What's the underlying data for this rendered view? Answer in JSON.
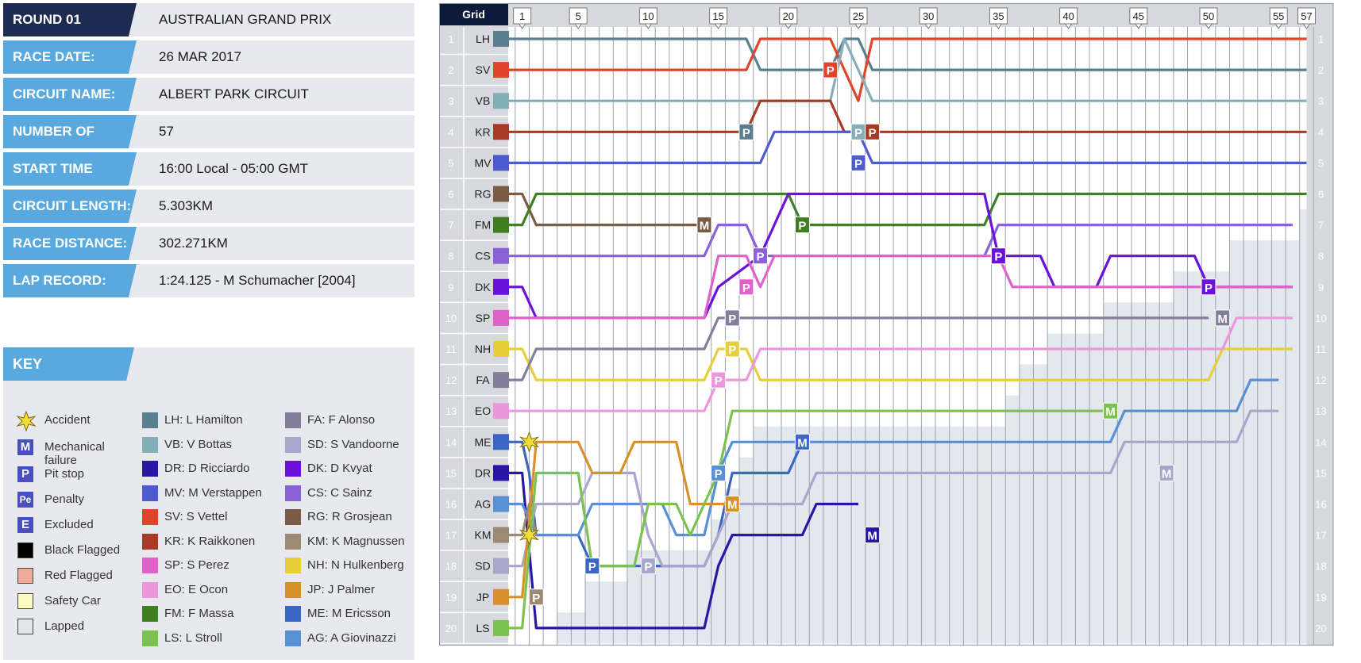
{
  "info": {
    "round": "ROUND 01",
    "event": "AUSTRALIAN GRAND PRIX",
    "rows": [
      {
        "label": "RACE DATE:",
        "value": "26 MAR 2017"
      },
      {
        "label": "CIRCUIT NAME:",
        "value": "ALBERT PARK CIRCUIT"
      },
      {
        "label": "NUMBER OF LAPS:",
        "value": "57"
      },
      {
        "label": "START TIME",
        "value": "16:00 Local - 05:00 GMT"
      },
      {
        "label": "CIRCUIT LENGTH:",
        "value": "5.303KM"
      },
      {
        "label": "RACE DISTANCE:",
        "value": "302.271KM"
      },
      {
        "label": "LAP RECORD:",
        "value": "1:24.125 - M Schumacher [2004]"
      }
    ]
  },
  "key": {
    "title": "KEY",
    "symbols": [
      {
        "icon": "accident-icon",
        "label": "Accident"
      },
      {
        "icon": "mechanical-failure-icon",
        "letter": "M",
        "label": "Mechanical failure"
      },
      {
        "icon": "pit-stop-icon",
        "letter": "P",
        "label": "Pit stop"
      },
      {
        "icon": "penalty-icon",
        "letter": "Pe",
        "label": "Penalty"
      },
      {
        "icon": "excluded-icon",
        "letter": "E",
        "label": "Excluded"
      },
      {
        "icon": "black-flag-icon",
        "label": "Black Flagged",
        "color": "#000000"
      },
      {
        "icon": "red-flag-icon",
        "label": "Red Flagged",
        "color": "#f1a99a"
      },
      {
        "icon": "safety-car-icon",
        "label": "Safety Car",
        "color": "#fbfbc0"
      },
      {
        "icon": "lapped-icon",
        "label": "Lapped",
        "color": "#e3e7ec"
      }
    ],
    "drivers": [
      {
        "code": "LH",
        "label": "LH: L Hamilton"
      },
      {
        "code": "VB",
        "label": "VB: V Bottas"
      },
      {
        "code": "DR",
        "label": "DR: D Ricciardo"
      },
      {
        "code": "MV",
        "label": "MV: M Verstappen"
      },
      {
        "code": "SV",
        "label": "SV: S Vettel"
      },
      {
        "code": "KR",
        "label": "KR: K Raikkonen"
      },
      {
        "code": "SP",
        "label": "SP: S Perez"
      },
      {
        "code": "EO",
        "label": "EO: E Ocon"
      },
      {
        "code": "FM",
        "label": "FM: F Massa"
      },
      {
        "code": "LS",
        "label": "LS: L Stroll"
      },
      {
        "code": "FA",
        "label": "FA: F Alonso"
      },
      {
        "code": "SD",
        "label": "SD: S Vandoorne"
      },
      {
        "code": "DK",
        "label": "DK: D Kvyat"
      },
      {
        "code": "CS",
        "label": "CS: C Sainz"
      },
      {
        "code": "RG",
        "label": "RG: R Grosjean"
      },
      {
        "code": "KM",
        "label": "KM: K Magnussen"
      },
      {
        "code": "NH",
        "label": "NH: N Hulkenberg"
      },
      {
        "code": "JP",
        "label": "JP: J Palmer"
      },
      {
        "code": "ME",
        "label": "ME: M Ericsson"
      },
      {
        "code": "AG",
        "label": "AG: A Giovinazzi"
      }
    ]
  },
  "chart_data": {
    "type": "line",
    "xlabel": "",
    "ylabel": "",
    "grid_header": "Grid",
    "x_ticks": [
      1,
      5,
      10,
      15,
      20,
      25,
      30,
      35,
      40,
      45,
      50,
      55,
      57
    ],
    "x_range": [
      0,
      57
    ],
    "y_range": [
      1,
      20
    ],
    "grid": true,
    "colors": {
      "LH": "#5a7f8e",
      "SV": "#e0452b",
      "VB": "#85afb8",
      "KR": "#a93a26",
      "MV": "#4e5bcf",
      "RG": "#7a5c45",
      "FM": "#3f7e23",
      "CS": "#8a62d8",
      "DK": "#6a12dc",
      "SP": "#e061c9",
      "NH": "#e6cf3a",
      "FA": "#837f9b",
      "EO": "#ec97dc",
      "ME": "#3b66c4",
      "DR": "#2a16a6",
      "AG": "#5790d4",
      "KM": "#9d8a72",
      "SD": "#aaa6cb",
      "JP": "#d8902a",
      "LS": "#7bc24f"
    },
    "series": [
      {
        "name": "LH",
        "grid": 1,
        "positions": [
          [
            1,
            1
          ],
          [
            17,
            1
          ],
          [
            18,
            2
          ],
          [
            23,
            2
          ],
          [
            24,
            1
          ],
          [
            25,
            1
          ],
          [
            26,
            2
          ],
          [
            57,
            2
          ]
        ]
      },
      {
        "name": "SV",
        "grid": 2,
        "positions": [
          [
            1,
            2
          ],
          [
            17,
            2
          ],
          [
            18,
            1
          ],
          [
            23,
            1
          ],
          [
            24,
            2
          ],
          [
            25,
            3
          ],
          [
            26,
            1
          ],
          [
            57,
            1
          ]
        ]
      },
      {
        "name": "VB",
        "grid": 3,
        "positions": [
          [
            1,
            3
          ],
          [
            17,
            3
          ],
          [
            18,
            3
          ],
          [
            23,
            3
          ],
          [
            24,
            1
          ],
          [
            25,
            2
          ],
          [
            26,
            3
          ],
          [
            57,
            3
          ]
        ]
      },
      {
        "name": "KR",
        "grid": 4,
        "positions": [
          [
            1,
            4
          ],
          [
            17,
            4
          ],
          [
            18,
            3
          ],
          [
            23,
            3
          ],
          [
            24,
            4
          ],
          [
            25,
            4
          ],
          [
            26,
            4
          ],
          [
            57,
            4
          ]
        ]
      },
      {
        "name": "MV",
        "grid": 5,
        "positions": [
          [
            1,
            5
          ],
          [
            18,
            5
          ],
          [
            19,
            4
          ],
          [
            25,
            4
          ],
          [
            26,
            5
          ],
          [
            57,
            5
          ]
        ]
      },
      {
        "name": "RG",
        "grid": 6,
        "positions": [
          [
            1,
            6
          ],
          [
            2,
            7
          ],
          [
            14,
            7
          ]
        ]
      },
      {
        "name": "FM",
        "grid": 7,
        "positions": [
          [
            1,
            7
          ],
          [
            2,
            6
          ],
          [
            20,
            6
          ],
          [
            21,
            7
          ],
          [
            34,
            7
          ],
          [
            35,
            6
          ],
          [
            57,
            6
          ]
        ]
      },
      {
        "name": "CS",
        "grid": 8,
        "positions": [
          [
            1,
            8
          ],
          [
            14,
            8
          ],
          [
            15,
            7
          ],
          [
            17,
            7
          ],
          [
            18,
            8
          ],
          [
            34,
            8
          ],
          [
            35,
            7
          ],
          [
            56,
            7
          ]
        ]
      },
      {
        "name": "DK",
        "grid": 9,
        "positions": [
          [
            1,
            9
          ],
          [
            2,
            10
          ],
          [
            14,
            10
          ],
          [
            15,
            9
          ],
          [
            18,
            8
          ],
          [
            19,
            7
          ],
          [
            20,
            6
          ],
          [
            34,
            6
          ],
          [
            35,
            8
          ],
          [
            38,
            8
          ],
          [
            39,
            9
          ],
          [
            42,
            9
          ],
          [
            43,
            8
          ],
          [
            49,
            8
          ],
          [
            50,
            9
          ],
          [
            56,
            9
          ]
        ]
      },
      {
        "name": "SP",
        "grid": 10,
        "positions": [
          [
            1,
            10
          ],
          [
            14,
            10
          ],
          [
            15,
            8
          ],
          [
            17,
            8
          ],
          [
            18,
            9
          ],
          [
            19,
            8
          ],
          [
            35,
            8
          ],
          [
            36,
            9
          ],
          [
            56,
            9
          ]
        ]
      },
      {
        "name": "NH",
        "grid": 11,
        "positions": [
          [
            1,
            11
          ],
          [
            2,
            12
          ],
          [
            14,
            12
          ],
          [
            15,
            11
          ],
          [
            17,
            11
          ],
          [
            18,
            12
          ],
          [
            50,
            12
          ],
          [
            51,
            11
          ],
          [
            56,
            11
          ]
        ]
      },
      {
        "name": "FA",
        "grid": 12,
        "positions": [
          [
            1,
            12
          ],
          [
            2,
            11
          ],
          [
            14,
            11
          ],
          [
            15,
            10
          ],
          [
            50,
            10
          ]
        ]
      },
      {
        "name": "EO",
        "grid": 13,
        "positions": [
          [
            1,
            13
          ],
          [
            14,
            13
          ],
          [
            15,
            12
          ],
          [
            17,
            12
          ],
          [
            18,
            11
          ],
          [
            51,
            11
          ],
          [
            52,
            10
          ],
          [
            56,
            10
          ]
        ]
      },
      {
        "name": "ME",
        "grid": 14,
        "positions": [
          [
            1,
            14
          ],
          [
            1.5,
            15
          ],
          [
            2,
            17
          ],
          [
            5,
            17
          ],
          [
            6,
            18
          ],
          [
            14,
            18
          ],
          [
            15,
            17
          ],
          [
            16,
            15
          ],
          [
            20,
            15
          ],
          [
            21,
            14
          ]
        ]
      },
      {
        "name": "DR",
        "grid": 15,
        "positions": [
          [
            1,
            15
          ],
          [
            2,
            20
          ],
          [
            14,
            20
          ],
          [
            15,
            18
          ],
          [
            16,
            17
          ],
          [
            21,
            17
          ],
          [
            22,
            16
          ],
          [
            25,
            16
          ]
        ]
      },
      {
        "name": "AG",
        "grid": 16,
        "positions": [
          [
            1,
            16
          ],
          [
            2,
            17
          ],
          [
            5,
            17
          ],
          [
            6,
            16
          ],
          [
            11,
            16
          ],
          [
            12,
            17
          ],
          [
            14,
            17
          ],
          [
            15,
            15
          ],
          [
            16,
            14
          ],
          [
            43,
            14
          ],
          [
            44,
            13
          ],
          [
            52,
            13
          ],
          [
            53,
            12
          ],
          [
            55,
            12
          ]
        ]
      },
      {
        "name": "KM",
        "grid": 17,
        "positions": [
          [
            1,
            17
          ],
          [
            1.5,
            16
          ],
          [
            2,
            17
          ]
        ]
      },
      {
        "name": "SD",
        "grid": 18,
        "positions": [
          [
            1,
            18
          ],
          [
            2,
            16
          ],
          [
            5,
            16
          ],
          [
            6,
            15
          ],
          [
            9,
            15
          ],
          [
            10,
            17
          ],
          [
            11,
            18
          ],
          [
            14,
            18
          ],
          [
            15,
            17
          ],
          [
            16,
            16
          ],
          [
            21,
            16
          ],
          [
            22,
            15
          ],
          [
            43,
            15
          ],
          [
            44,
            14
          ],
          [
            52,
            14
          ],
          [
            53,
            13
          ],
          [
            55,
            13
          ]
        ]
      },
      {
        "name": "JP",
        "grid": 19,
        "positions": [
          [
            1,
            19
          ],
          [
            2,
            14
          ],
          [
            5,
            14
          ],
          [
            6,
            15
          ],
          [
            8,
            15
          ],
          [
            9,
            14
          ],
          [
            12,
            14
          ],
          [
            13,
            16
          ],
          [
            15,
            16
          ],
          [
            16,
            16
          ]
        ]
      },
      {
        "name": "LS",
        "grid": 20,
        "positions": [
          [
            1,
            20
          ],
          [
            2,
            15
          ],
          [
            5,
            15
          ],
          [
            6,
            18
          ],
          [
            9,
            18
          ],
          [
            10,
            16
          ],
          [
            12,
            16
          ],
          [
            13,
            17
          ],
          [
            14,
            16
          ],
          [
            15,
            15
          ],
          [
            16,
            13
          ],
          [
            43,
            13
          ]
        ]
      }
    ],
    "events": [
      {
        "type": "P",
        "driver": "LH",
        "lap": 17,
        "pos": 4
      },
      {
        "type": "P",
        "driver": "SV",
        "lap": 23,
        "pos": 2
      },
      {
        "type": "P",
        "driver": "VB",
        "lap": 25,
        "pos": 4
      },
      {
        "type": "P",
        "driver": "KR",
        "lap": 26,
        "pos": 4
      },
      {
        "type": "P",
        "driver": "MV",
        "lap": 25,
        "pos": 5
      },
      {
        "type": "P",
        "driver": "FM",
        "lap": 21,
        "pos": 7
      },
      {
        "type": "P",
        "driver": "CS",
        "lap": 18,
        "pos": 8
      },
      {
        "type": "P",
        "driver": "DK",
        "lap": 35,
        "pos": 8
      },
      {
        "type": "P",
        "driver": "DK",
        "lap": 50,
        "pos": 9
      },
      {
        "type": "P",
        "driver": "SP",
        "lap": 17,
        "pos": 9
      },
      {
        "type": "P",
        "driver": "FA",
        "lap": 16,
        "pos": 10
      },
      {
        "type": "P",
        "driver": "NH",
        "lap": 16,
        "pos": 11
      },
      {
        "type": "P",
        "driver": "EO",
        "lap": 15,
        "pos": 12
      },
      {
        "type": "P",
        "driver": "AG",
        "lap": 15,
        "pos": 15
      },
      {
        "type": "P",
        "driver": "ME",
        "lap": 6,
        "pos": 18
      },
      {
        "type": "P",
        "driver": "SD",
        "lap": 10,
        "pos": 18
      },
      {
        "type": "P",
        "driver": "KM",
        "lap": 2,
        "pos": 19
      },
      {
        "type": "M",
        "driver": "RG",
        "lap": 14,
        "pos": 7
      },
      {
        "type": "M",
        "driver": "FA",
        "lap": 51,
        "pos": 10
      },
      {
        "type": "M",
        "driver": "LS",
        "lap": 43,
        "pos": 13
      },
      {
        "type": "M",
        "driver": "ME",
        "lap": 21,
        "pos": 14
      },
      {
        "type": "M",
        "driver": "JP",
        "lap": 16,
        "pos": 16
      },
      {
        "type": "M",
        "driver": "SD",
        "lap": 47,
        "pos": 15
      },
      {
        "type": "M",
        "driver": "DR",
        "lap": 26,
        "pos": 17
      },
      {
        "type": "A",
        "driver": "ME",
        "lap": 1.5,
        "pos": 14
      },
      {
        "type": "A",
        "driver": "KM",
        "lap": 1.5,
        "pos": 17
      }
    ],
    "lapped_steps": [
      [
        57,
        7
      ],
      [
        52,
        8
      ],
      [
        48,
        9
      ],
      [
        43,
        10
      ],
      [
        39,
        11
      ],
      [
        37,
        12
      ],
      [
        36,
        13
      ],
      [
        18,
        14
      ],
      [
        17,
        15
      ],
      [
        16,
        16
      ],
      [
        15,
        17
      ],
      [
        9,
        18
      ],
      [
        6,
        19
      ],
      [
        4,
        20
      ]
    ]
  }
}
